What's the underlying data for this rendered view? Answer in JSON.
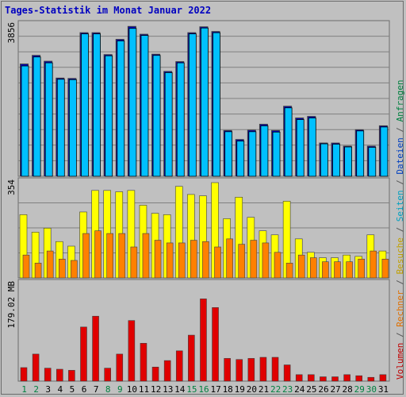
{
  "title": "Tages-Statistik im Monat Januar 2022",
  "right_legend": [
    {
      "text": "Volumen",
      "color": "#c00000"
    },
    {
      "text": " / ",
      "color": "#555555"
    },
    {
      "text": "Rechner",
      "color": "#e07000"
    },
    {
      "text": " / ",
      "color": "#555555"
    },
    {
      "text": "Besuche",
      "color": "#c0a000"
    },
    {
      "text": " / ",
      "color": "#555555"
    },
    {
      "text": "Seiten",
      "color": "#00a0c0"
    },
    {
      "text": " / ",
      "color": "#555555"
    },
    {
      "text": "Dateien",
      "color": "#0040c0"
    },
    {
      "text": " / ",
      "color": "#555555"
    },
    {
      "text": "Anfragen",
      "color": "#008040"
    }
  ],
  "colors": {
    "background": "#c0c0c0",
    "title": "#0000c0",
    "weekday_label": "#000000",
    "weekend_label": "#008040",
    "gridline": "#808080",
    "anfragen": "#00a000",
    "dateien": "#0000c0",
    "seiten": "#00c0ff",
    "besuche": "#ffff00",
    "rechner": "#ff8000",
    "volumen": "#e00000"
  },
  "chart_data": [
    {
      "type": "bar",
      "axis_label": "3856",
      "ylim": [
        0,
        3856
      ],
      "categories": [
        "1",
        "2",
        "3",
        "4",
        "5",
        "6",
        "7",
        "8",
        "9",
        "10",
        "11",
        "12",
        "13",
        "14",
        "15",
        "16",
        "17",
        "18",
        "19",
        "20",
        "21",
        "22",
        "23",
        "24",
        "25",
        "26",
        "27",
        "28",
        "29",
        "30",
        "31"
      ],
      "weekend": [
        "1",
        "2",
        "8",
        "9",
        "15",
        "16",
        "22",
        "23",
        "29",
        "30"
      ],
      "series": [
        {
          "name": "Anfragen",
          "values": [
            2880,
            3100,
            2950,
            2520,
            2510,
            3680,
            3680,
            3120,
            3510,
            3840,
            3640,
            3130,
            2690,
            2940,
            3680,
            3830,
            3710,
            1180,
            950,
            1190,
            1340,
            1180,
            1800,
            1500,
            1540,
            860,
            860,
            780,
            1200,
            780,
            1300
          ]
        },
        {
          "name": "Dateien",
          "values": [
            2880,
            3100,
            2950,
            2520,
            2510,
            3680,
            3680,
            3120,
            3510,
            3840,
            3640,
            3130,
            2690,
            2940,
            3680,
            3830,
            3710,
            1180,
            950,
            1190,
            1340,
            1180,
            1800,
            1500,
            1540,
            860,
            860,
            780,
            1200,
            780,
            1300
          ]
        },
        {
          "name": "Seiten",
          "values": [
            2820,
            3050,
            2900,
            2480,
            2470,
            3640,
            3640,
            3080,
            3460,
            3780,
            3600,
            3090,
            2650,
            2900,
            3640,
            3790,
            3670,
            1140,
            900,
            1140,
            1290,
            1130,
            1750,
            1450,
            1490,
            830,
            820,
            750,
            1160,
            740,
            1260
          ]
        }
      ]
    },
    {
      "type": "bar",
      "axis_label": "354",
      "ylim": [
        0,
        354
      ],
      "categories": [
        "1",
        "2",
        "3",
        "4",
        "5",
        "6",
        "7",
        "8",
        "9",
        "10",
        "11",
        "12",
        "13",
        "14",
        "15",
        "16",
        "17",
        "18",
        "19",
        "20",
        "21",
        "22",
        "23",
        "24",
        "25",
        "26",
        "27",
        "28",
        "29",
        "30",
        "31"
      ],
      "series": [
        {
          "name": "Besuche",
          "values": [
            235,
            170,
            185,
            135,
            118,
            245,
            325,
            325,
            320,
            325,
            270,
            240,
            235,
            340,
            310,
            305,
            354,
            220,
            300,
            225,
            175,
            160,
            285,
            145,
            95,
            75,
            75,
            85,
            80,
            160,
            100
          ]
        },
        {
          "name": "Rechner",
          "values": [
            85,
            55,
            100,
            70,
            65,
            165,
            175,
            165,
            165,
            115,
            165,
            140,
            130,
            130,
            140,
            135,
            115,
            145,
            125,
            140,
            130,
            95,
            55,
            85,
            75,
            60,
            60,
            60,
            70,
            100,
            70
          ]
        }
      ]
    },
    {
      "type": "bar",
      "axis_label": "179.02 MB",
      "ylim": [
        0,
        179.02
      ],
      "categories": [
        "1",
        "2",
        "3",
        "4",
        "5",
        "6",
        "7",
        "8",
        "9",
        "10",
        "11",
        "12",
        "13",
        "14",
        "15",
        "16",
        "17",
        "18",
        "19",
        "20",
        "21",
        "22",
        "23",
        "24",
        "25",
        "26",
        "27",
        "28",
        "29",
        "30",
        "31"
      ],
      "series": [
        {
          "name": "Volumen",
          "values": [
            25,
            50,
            24,
            22,
            20,
            100,
            120,
            24,
            50,
            112,
            70,
            26,
            38,
            56,
            85,
            152,
            136,
            42,
            40,
            42,
            44,
            44,
            30,
            12,
            12,
            8,
            8,
            12,
            10,
            7,
            12
          ]
        }
      ]
    }
  ]
}
